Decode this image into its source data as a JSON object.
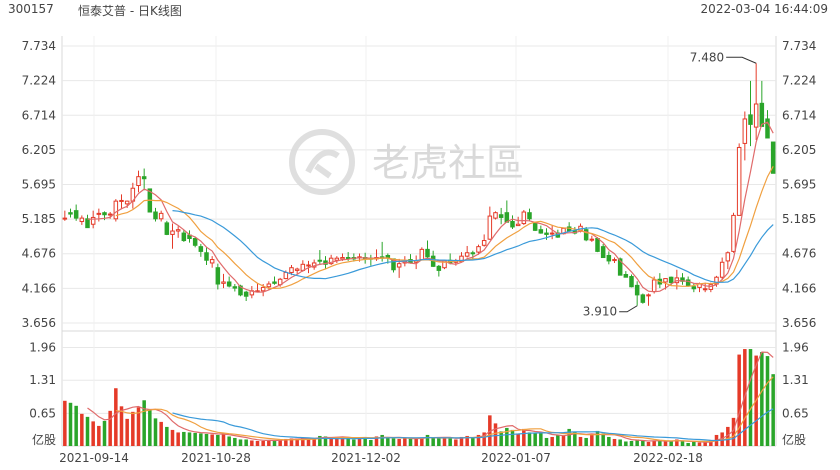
{
  "header": {
    "code": "300157",
    "title": "恒泰艾普 - 日K线图",
    "datetime": "2022-03-04 16:44:09"
  },
  "watermark": {
    "text": "老虎社區",
    "icon": "tiger-logo-icon"
  },
  "colors": {
    "up": "#e53a28",
    "down": "#2aa52a",
    "ma_fast": "#e06b6b",
    "ma_mid": "#f0a040",
    "ma_slow": "#3a9ad9",
    "grid": "#e8e8e8"
  },
  "chart_data": {
    "type": "candlestick",
    "price_ticks": [
      "7.734",
      "7.224",
      "6.714",
      "6.205",
      "5.695",
      "5.185",
      "4.676",
      "4.166",
      "3.656"
    ],
    "price_range": [
      3.656,
      7.734
    ],
    "volume_ticks": [
      "1.96",
      "1.31",
      "0.65"
    ],
    "volume_unit": "亿股",
    "volume_range": [
      0,
      2.15
    ],
    "x_labels": [
      "2021-09-14",
      "2021-10-28",
      "2021-12-02",
      "2022-01-07",
      "2022-02-18"
    ],
    "annotations": [
      {
        "label": "7.480",
        "candle": 122,
        "price": 7.48
      },
      {
        "label": "3.910",
        "candle": 101,
        "price": 3.91
      }
    ],
    "candles": [
      [
        5.2,
        5.31,
        5.16,
        5.2,
        0.9
      ],
      [
        5.28,
        5.34,
        5.21,
        5.26,
        0.86
      ],
      [
        5.31,
        5.4,
        5.16,
        5.2,
        0.8
      ],
      [
        5.15,
        5.24,
        5.1,
        5.2,
        0.64
      ],
      [
        5.19,
        5.25,
        5.06,
        5.06,
        0.58
      ],
      [
        5.11,
        5.31,
        5.05,
        5.21,
        0.49
      ],
      [
        5.27,
        5.34,
        5.15,
        5.27,
        0.4
      ],
      [
        5.28,
        5.3,
        5.17,
        5.25,
        0.5
      ],
      [
        5.25,
        5.29,
        5.19,
        5.26,
        0.7
      ],
      [
        5.19,
        5.48,
        5.15,
        5.45,
        1.15
      ],
      [
        5.46,
        5.55,
        5.33,
        5.46,
        0.79
      ],
      [
        5.41,
        5.46,
        5.35,
        5.45,
        0.54
      ],
      [
        5.45,
        5.72,
        5.34,
        5.64,
        0.68
      ],
      [
        5.68,
        5.9,
        5.58,
        5.81,
        0.77
      ],
      [
        5.81,
        5.93,
        5.61,
        5.78,
        0.91
      ],
      [
        5.63,
        5.63,
        5.29,
        5.29,
        0.73
      ],
      [
        5.29,
        5.35,
        5.15,
        5.19,
        0.55
      ],
      [
        5.19,
        5.31,
        5.15,
        5.27,
        0.48
      ],
      [
        5.13,
        5.16,
        4.95,
        4.96,
        0.38
      ],
      [
        4.96,
        5.12,
        4.75,
        5.01,
        0.32
      ],
      [
        5.01,
        5.08,
        4.91,
        5.03,
        0.27
      ],
      [
        4.98,
        5.03,
        4.85,
        4.87,
        0.28
      ],
      [
        4.95,
        5.02,
        4.84,
        4.9,
        0.27
      ],
      [
        4.9,
        4.93,
        4.77,
        4.8,
        0.26
      ],
      [
        4.78,
        4.82,
        4.63,
        4.71,
        0.25
      ],
      [
        4.69,
        4.77,
        4.51,
        4.58,
        0.24
      ],
      [
        4.54,
        4.64,
        4.47,
        4.59,
        0.23
      ],
      [
        4.47,
        4.53,
        4.15,
        4.23,
        0.22
      ],
      [
        4.24,
        4.38,
        4.17,
        4.26,
        0.24
      ],
      [
        4.26,
        4.34,
        4.18,
        4.2,
        0.19
      ],
      [
        4.19,
        4.23,
        4.12,
        4.17,
        0.16
      ],
      [
        4.2,
        4.22,
        4.05,
        4.07,
        0.13
      ],
      [
        4.11,
        4.13,
        3.98,
        4.05,
        0.13
      ],
      [
        4.07,
        4.2,
        4.02,
        4.13,
        0.11
      ],
      [
        4.12,
        4.24,
        4.11,
        4.13,
        0.1
      ],
      [
        4.13,
        4.23,
        4.05,
        4.18,
        0.1
      ],
      [
        4.19,
        4.27,
        4.14,
        4.23,
        0.12
      ],
      [
        4.26,
        4.34,
        4.22,
        4.24,
        0.12
      ],
      [
        4.22,
        4.32,
        4.19,
        4.3,
        0.13
      ],
      [
        4.31,
        4.43,
        4.3,
        4.4,
        0.14
      ],
      [
        4.4,
        4.51,
        4.36,
        4.47,
        0.15
      ],
      [
        4.43,
        4.47,
        4.38,
        4.45,
        0.15
      ],
      [
        4.43,
        4.58,
        4.41,
        4.52,
        0.16
      ],
      [
        4.51,
        4.57,
        4.39,
        4.51,
        0.15
      ],
      [
        4.48,
        4.59,
        4.44,
        4.54,
        0.15
      ],
      [
        4.58,
        4.73,
        4.51,
        4.57,
        0.2
      ],
      [
        4.57,
        4.64,
        4.45,
        4.52,
        0.19
      ],
      [
        4.53,
        4.66,
        4.51,
        4.61,
        0.16
      ],
      [
        4.58,
        4.64,
        4.54,
        4.61,
        0.18
      ],
      [
        4.6,
        4.68,
        4.57,
        4.62,
        0.18
      ],
      [
        4.62,
        4.7,
        4.57,
        4.61,
        0.17
      ],
      [
        4.62,
        4.68,
        4.56,
        4.6,
        0.13
      ],
      [
        4.62,
        4.68,
        4.56,
        4.63,
        0.17
      ],
      [
        4.62,
        4.69,
        4.53,
        4.61,
        0.16
      ],
      [
        4.61,
        4.66,
        4.5,
        4.6,
        0.12
      ],
      [
        4.6,
        4.74,
        4.57,
        4.62,
        0.19
      ],
      [
        4.63,
        4.85,
        4.56,
        4.61,
        0.22
      ],
      [
        4.65,
        4.68,
        4.53,
        4.62,
        0.17
      ],
      [
        4.6,
        4.6,
        4.4,
        4.44,
        0.15
      ],
      [
        4.48,
        4.6,
        4.32,
        4.53,
        0.14
      ],
      [
        4.54,
        4.64,
        4.49,
        4.56,
        0.15
      ],
      [
        4.59,
        4.67,
        4.53,
        4.54,
        0.14
      ],
      [
        4.55,
        4.65,
        4.45,
        4.57,
        0.15
      ],
      [
        4.59,
        4.77,
        4.58,
        4.74,
        0.17
      ],
      [
        4.74,
        4.87,
        4.61,
        4.63,
        0.22
      ],
      [
        4.64,
        4.72,
        4.48,
        4.49,
        0.16
      ],
      [
        4.49,
        4.51,
        4.34,
        4.43,
        0.15
      ],
      [
        4.47,
        4.59,
        4.45,
        4.57,
        0.16
      ],
      [
        4.58,
        4.68,
        4.52,
        4.54,
        0.17
      ],
      [
        4.55,
        4.6,
        4.5,
        4.57,
        0.13
      ],
      [
        4.56,
        4.7,
        4.55,
        4.64,
        0.18
      ],
      [
        4.64,
        4.79,
        4.62,
        4.69,
        0.2
      ],
      [
        4.69,
        4.72,
        4.6,
        4.68,
        0.16
      ],
      [
        4.7,
        4.81,
        4.66,
        4.78,
        0.22
      ],
      [
        4.8,
        4.96,
        4.78,
        4.87,
        0.27
      ],
      [
        4.89,
        5.37,
        4.88,
        5.23,
        0.61
      ],
      [
        5.2,
        5.3,
        5.18,
        5.28,
        0.45
      ],
      [
        5.25,
        5.35,
        5.11,
        5.21,
        0.29
      ],
      [
        5.28,
        5.46,
        5.15,
        5.14,
        0.36
      ],
      [
        5.15,
        5.24,
        5.04,
        5.07,
        0.32
      ],
      [
        5.09,
        5.22,
        5.09,
        5.11,
        0.25
      ],
      [
        5.12,
        5.32,
        5.1,
        5.29,
        0.34
      ],
      [
        5.28,
        5.34,
        5.15,
        5.19,
        0.27
      ],
      [
        5.12,
        5.14,
        5.01,
        5.02,
        0.26
      ],
      [
        5.03,
        5.09,
        4.97,
        4.98,
        0.27
      ],
      [
        4.98,
        5.05,
        4.88,
        4.96,
        0.16
      ],
      [
        4.97,
        5.1,
        4.89,
        4.98,
        0.18
      ],
      [
        4.98,
        5.03,
        4.91,
        4.92,
        0.22
      ],
      [
        4.97,
        5.06,
        4.96,
        5.05,
        0.2
      ],
      [
        5.07,
        5.14,
        5,
        5.01,
        0.34
      ],
      [
        5.01,
        5.07,
        4.96,
        4.98,
        0.28
      ],
      [
        5.02,
        5.12,
        4.99,
        5.08,
        0.18
      ],
      [
        5.03,
        5.07,
        4.86,
        4.88,
        0.16
      ],
      [
        4.88,
        4.94,
        4.85,
        4.89,
        0.24
      ],
      [
        4.9,
        4.92,
        4.7,
        4.71,
        0.3
      ],
      [
        4.78,
        4.82,
        4.62,
        4.62,
        0.25
      ],
      [
        4.65,
        4.71,
        4.52,
        4.57,
        0.18
      ],
      [
        4.58,
        4.62,
        4.54,
        4.59,
        0.14
      ],
      [
        4.6,
        4.62,
        4.36,
        4.36,
        0.13
      ],
      [
        4.37,
        4.42,
        4.33,
        4.33,
        0.09
      ],
      [
        4.34,
        4.37,
        4.18,
        4.19,
        0.1
      ],
      [
        4.21,
        4.27,
        3.91,
        4.07,
        0.13
      ],
      [
        4.07,
        4.09,
        3.94,
        3.96,
        0.1
      ],
      [
        4.07,
        4.09,
        3.91,
        4.07,
        0.08
      ],
      [
        4.12,
        4.34,
        4.09,
        4.29,
        0.11
      ],
      [
        4.3,
        4.39,
        4.17,
        4.23,
        0.11
      ],
      [
        4.26,
        4.31,
        4.15,
        4.31,
        0.09
      ],
      [
        4.33,
        4.34,
        4.2,
        4.25,
        0.1
      ],
      [
        4.25,
        4.44,
        4.15,
        4.32,
        0.13
      ],
      [
        4.32,
        4.39,
        4.22,
        4.27,
        0.09
      ],
      [
        4.29,
        4.34,
        4.19,
        4.2,
        0.06
      ],
      [
        4.19,
        4.24,
        4.11,
        4.16,
        0.08
      ],
      [
        4.18,
        4.25,
        4.11,
        4.23,
        0.07
      ],
      [
        4.16,
        4.25,
        4.11,
        4.16,
        0.07
      ],
      [
        4.15,
        4.25,
        4.11,
        4.22,
        0.12
      ],
      [
        4.23,
        4.35,
        4.19,
        4.33,
        0.22
      ],
      [
        4.33,
        4.62,
        4.29,
        4.55,
        0.27
      ],
      [
        4.57,
        4.71,
        4.45,
        4.69,
        0.38
      ],
      [
        4.71,
        5.28,
        4.69,
        5.24,
        0.56
      ],
      [
        5.24,
        6.3,
        5.24,
        6.24,
        1.82
      ],
      [
        6.3,
        6.77,
        6.05,
        6.66,
        1.93
      ],
      [
        6.72,
        7.22,
        6.26,
        6.58,
        1.93
      ],
      [
        6.54,
        7.48,
        6.35,
        6.88,
        1.8
      ],
      [
        6.89,
        7.22,
        6.55,
        6.55,
        1.87
      ],
      [
        6.66,
        6.79,
        6.41,
        6.38,
        1.79
      ],
      [
        6.32,
        6.32,
        5.86,
        5.86,
        1.43
      ]
    ]
  }
}
